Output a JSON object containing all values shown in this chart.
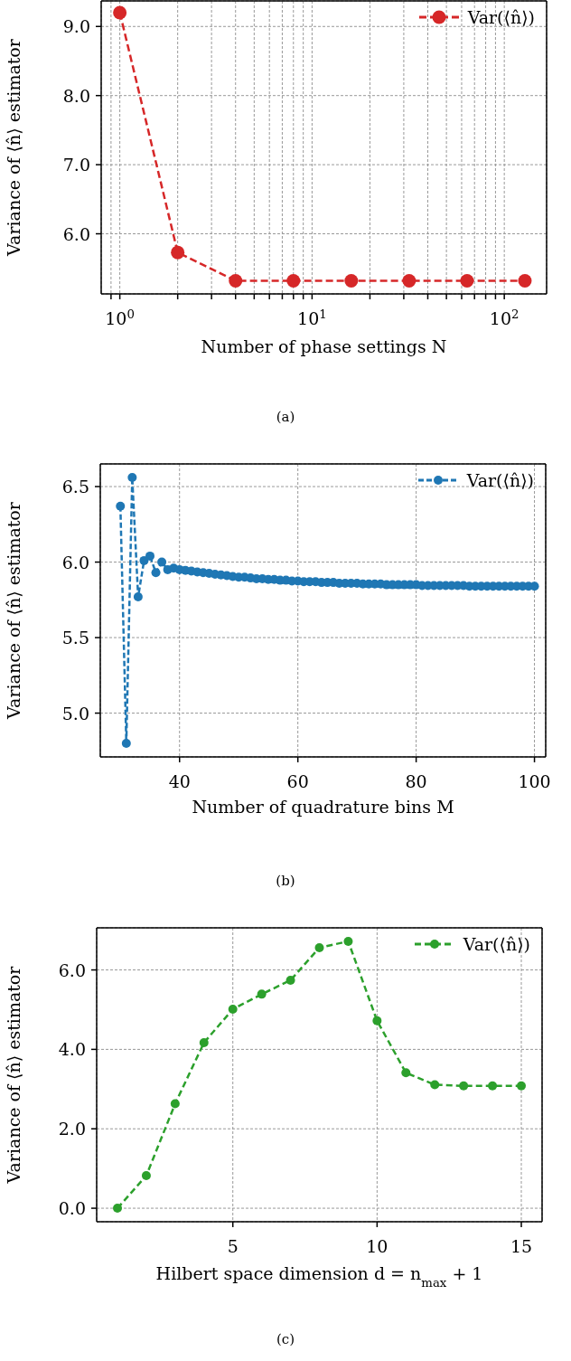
{
  "chart_data": [
    {
      "type": "line",
      "xlabel": "Number of phase settings N",
      "ylabel": "Variance of ⟨n̂⟩ estimator",
      "annotations": [
        "(a)"
      ],
      "log": "x",
      "grid": true,
      "legend": "top right",
      "marker": "circle",
      "line_style": "dashed",
      "x": [
        1,
        2,
        4,
        8,
        16,
        32,
        64,
        128
      ],
      "series": [
        {
          "name": "Var(⟨n̂⟩)",
          "color": "#d62728",
          "values": [
            9.2,
            5.73,
            5.32,
            5.32,
            5.32,
            5.32,
            5.32,
            5.32
          ]
        }
      ],
      "xlim": [
        0.8,
        166
      ],
      "ylim": [
        5.13,
        9.37
      ],
      "xticks": [
        {
          "value": 0.9,
          "label": null
        },
        {
          "value": 1,
          "label": "10$^{0}$"
        },
        {
          "value": 2,
          "label": null
        },
        {
          "value": 3,
          "label": null
        },
        {
          "value": 4,
          "label": null
        },
        {
          "value": 5,
          "label": null
        },
        {
          "value": 6,
          "label": null
        },
        {
          "value": 7,
          "label": null
        },
        {
          "value": 8,
          "label": null
        },
        {
          "value": 9,
          "label": null
        },
        {
          "value": 10,
          "label": "10$^{1}$"
        },
        {
          "value": 20,
          "label": null
        },
        {
          "value": 30,
          "label": null
        },
        {
          "value": 40,
          "label": null
        },
        {
          "value": 50,
          "label": null
        },
        {
          "value": 60,
          "label": null
        },
        {
          "value": 70,
          "label": null
        },
        {
          "value": 80,
          "label": null
        },
        {
          "value": 90,
          "label": null
        },
        {
          "value": 100,
          "label": "10$^{2}$"
        }
      ],
      "yticks": [
        {
          "value": 6,
          "label": "6.0"
        },
        {
          "value": 7,
          "label": "7.0"
        },
        {
          "value": 8,
          "label": "8.0"
        },
        {
          "value": 9,
          "label": "9.0"
        }
      ]
    },
    {
      "type": "line",
      "xlabel": "Number of quadrature bins M",
      "ylabel": "Variance of ⟨n̂⟩ estimator",
      "annotations": [
        "(b)"
      ],
      "grid": true,
      "legend": "top right",
      "marker": "circle",
      "line_style": "dashed",
      "x": [
        30,
        31,
        32,
        33,
        34,
        35,
        36,
        37,
        38,
        39,
        40,
        41,
        42,
        43,
        44,
        45,
        46,
        47,
        48,
        49,
        50,
        51,
        52,
        53,
        54,
        55,
        56,
        57,
        58,
        59,
        60,
        61,
        62,
        63,
        64,
        65,
        66,
        67,
        68,
        69,
        70,
        71,
        72,
        73,
        74,
        75,
        76,
        77,
        78,
        79,
        80,
        81,
        82,
        83,
        84,
        85,
        86,
        87,
        88,
        89,
        90,
        91,
        92,
        93,
        94,
        95,
        96,
        97,
        98,
        99,
        100
      ],
      "series": [
        {
          "name": "Var(⟨n̂⟩)",
          "color": "#1f77b4",
          "values": [
            6.37,
            4.8,
            6.56,
            5.77,
            6.01,
            6.04,
            5.93,
            6.0,
            5.95,
            5.96,
            5.95,
            5.945,
            5.94,
            5.935,
            5.93,
            5.925,
            5.92,
            5.915,
            5.91,
            5.905,
            5.9,
            5.9,
            5.895,
            5.89,
            5.89,
            5.885,
            5.885,
            5.88,
            5.88,
            5.875,
            5.875,
            5.87,
            5.87,
            5.87,
            5.865,
            5.865,
            5.865,
            5.86,
            5.86,
            5.86,
            5.86,
            5.855,
            5.855,
            5.855,
            5.855,
            5.85,
            5.85,
            5.85,
            5.85,
            5.85,
            5.85,
            5.845,
            5.845,
            5.845,
            5.845,
            5.845,
            5.845,
            5.845,
            5.845,
            5.84,
            5.84,
            5.84,
            5.84,
            5.84,
            5.84,
            5.84,
            5.84,
            5.84,
            5.84,
            5.84,
            5.84
          ]
        }
      ],
      "xlim": [
        26.6,
        101.9
      ],
      "ylim": [
        4.71,
        6.65
      ],
      "xticks": [
        40,
        60,
        80,
        100
      ],
      "yticks": [
        {
          "value": 5,
          "label": "5.0"
        },
        5.5,
        {
          "value": 6,
          "label": "6.0"
        },
        6.5
      ]
    },
    {
      "type": "line",
      "xlabel": "Hilbert space dimension d = n$_{max}$ + 1",
      "ylabel": "Variance of ⟨n̂⟩ estimator",
      "annotations": [
        "(c)"
      ],
      "grid": true,
      "legend": "top right",
      "marker": "circle",
      "line_style": "dashed",
      "x": [
        1,
        2,
        3,
        4,
        5,
        6,
        7,
        8,
        9,
        10,
        11,
        12,
        13,
        14,
        15
      ],
      "series": [
        {
          "name": "Var(⟨n̂⟩)",
          "color": "#2ca02c",
          "values": [
            0,
            0.82,
            2.63,
            4.17,
            5.01,
            5.39,
            5.74,
            6.56,
            6.72,
            4.72,
            3.41,
            3.11,
            3.08,
            3.08,
            3.08
          ]
        }
      ],
      "xlim": [
        0.28,
        15.72
      ],
      "ylim": [
        -0.34,
        7.06
      ],
      "xticks": [
        5,
        10,
        15
      ],
      "yticks": [
        {
          "value": 0,
          "label": "0.0"
        },
        {
          "value": 2,
          "label": "2.0"
        },
        {
          "value": 4,
          "label": "4.0"
        },
        {
          "value": 6,
          "label": "6.0"
        }
      ]
    }
  ]
}
